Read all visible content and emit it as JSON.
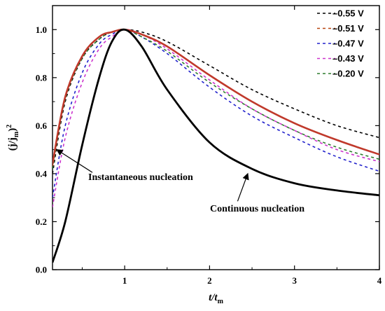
{
  "chart_data": {
    "type": "line",
    "xlim": [
      0.15,
      4
    ],
    "ylim": [
      0,
      1.1
    ],
    "x_ticks": [
      1,
      2,
      3,
      4
    ],
    "y_ticks": [
      0.0,
      0.2,
      0.4,
      0.6,
      0.8,
      1.0
    ],
    "y_tick_labels": [
      "0.0",
      "0.2",
      "0.4",
      "0.6",
      "0.8",
      "1.0"
    ],
    "xlabel": {
      "main": "t/t",
      "sub": "m"
    },
    "ylabel": {
      "pre": "(j/j",
      "sub": "m",
      "post": ")",
      "sup": "2"
    },
    "legend_position": "top-right",
    "grid": false,
    "series": [
      {
        "name": "–0.55 V",
        "color": "#000000",
        "dash": "4,4",
        "x": [
          0.15,
          0.3,
          0.5,
          0.7,
          0.85,
          1.0,
          1.2,
          1.5,
          2.0,
          2.5,
          3.0,
          3.5,
          4.0
        ],
        "y": [
          0.4,
          0.7,
          0.88,
          0.96,
          0.99,
          1.0,
          0.99,
          0.95,
          0.85,
          0.75,
          0.67,
          0.6,
          0.55
        ]
      },
      {
        "name": "–0.51 V",
        "color": "#b8450f",
        "dash": "4,4",
        "x": [
          0.15,
          0.3,
          0.5,
          0.7,
          0.85,
          1.0,
          1.2,
          1.5,
          2.0,
          2.5,
          3.0,
          3.5,
          4.0
        ],
        "y": [
          0.43,
          0.72,
          0.89,
          0.97,
          0.99,
          1.0,
          0.98,
          0.93,
          0.81,
          0.7,
          0.61,
          0.54,
          0.48
        ]
      },
      {
        "name": "–0.47 V",
        "color": "#2222cc",
        "dash": "4,4",
        "x": [
          0.15,
          0.3,
          0.5,
          0.7,
          0.85,
          1.0,
          1.2,
          1.5,
          2.0,
          2.5,
          3.0,
          3.5,
          4.0
        ],
        "y": [
          0.3,
          0.6,
          0.82,
          0.94,
          0.98,
          1.0,
          0.97,
          0.9,
          0.76,
          0.64,
          0.55,
          0.47,
          0.41
        ]
      },
      {
        "name": "–0.43 V",
        "color": "#cc33cc",
        "dash": "4,4",
        "x": [
          0.15,
          0.3,
          0.5,
          0.7,
          0.85,
          1.0,
          1.2,
          1.5,
          2.0,
          2.5,
          3.0,
          3.5,
          4.0
        ],
        "y": [
          0.26,
          0.55,
          0.78,
          0.92,
          0.97,
          1.0,
          0.98,
          0.92,
          0.79,
          0.67,
          0.58,
          0.5,
          0.45
        ]
      },
      {
        "name": "–0.20 V",
        "color": "#2e7d2e",
        "dash": "4,4",
        "x": [
          0.15,
          0.3,
          0.5,
          0.7,
          0.85,
          1.0,
          1.2,
          1.5,
          2.0,
          2.5,
          3.0,
          3.5,
          4.0
        ],
        "y": [
          0.42,
          0.71,
          0.88,
          0.96,
          0.99,
          1.0,
          0.97,
          0.91,
          0.78,
          0.67,
          0.58,
          0.51,
          0.46
        ]
      },
      {
        "name": "",
        "color": "#c0392b",
        "dash": "",
        "width": 2.6,
        "x": [
          0.15,
          0.3,
          0.5,
          0.7,
          0.85,
          1.0,
          1.2,
          1.5,
          2.0,
          2.5,
          3.0,
          3.5,
          4.0
        ],
        "y": [
          0.44,
          0.72,
          0.89,
          0.97,
          0.99,
          1.0,
          0.98,
          0.93,
          0.81,
          0.7,
          0.61,
          0.54,
          0.48
        ]
      },
      {
        "name": "",
        "color": "#000000",
        "dash": "",
        "width": 2.8,
        "x": [
          0.15,
          0.3,
          0.5,
          0.7,
          0.85,
          1.0,
          1.2,
          1.5,
          2.0,
          2.5,
          3.0,
          3.5,
          4.0
        ],
        "y": [
          0.03,
          0.2,
          0.52,
          0.8,
          0.95,
          1.0,
          0.93,
          0.75,
          0.53,
          0.42,
          0.36,
          0.33,
          0.31
        ]
      }
    ],
    "annotations": [
      {
        "text": "Instantaneous nucleation",
        "arrow_to": [
          0.2,
          0.5
        ],
        "arrow_from": [
          0.62,
          0.405
        ]
      },
      {
        "text": "Continuous nucleation",
        "arrow_to": [
          2.45,
          0.4
        ],
        "arrow_from": [
          2.33,
          0.285
        ]
      }
    ]
  }
}
